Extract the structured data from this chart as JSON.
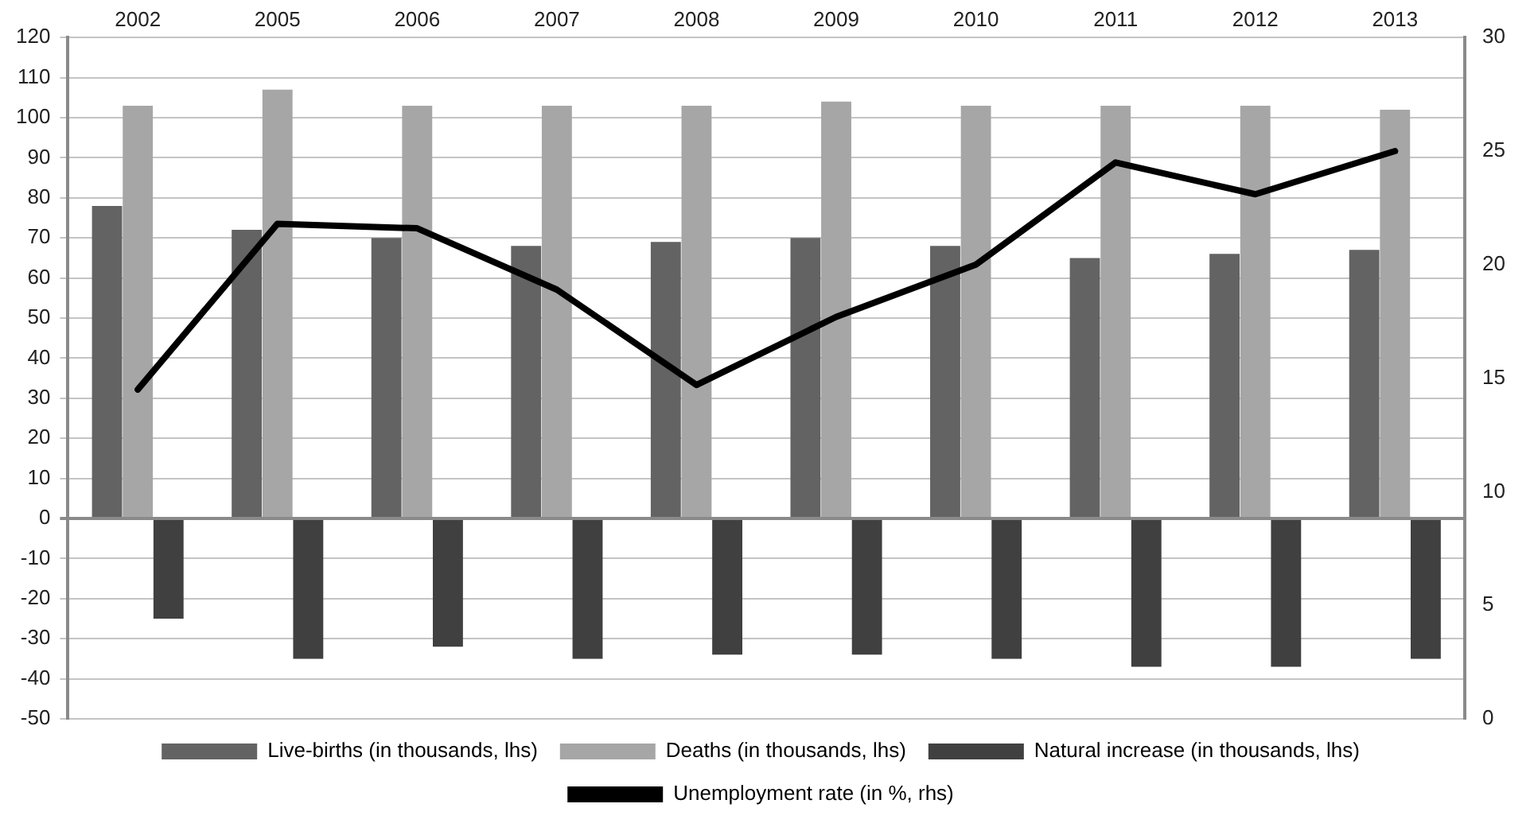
{
  "chart_data": {
    "type": "bar",
    "categories": [
      "2002",
      "2005",
      "2006",
      "2007",
      "2008",
      "2009",
      "2010",
      "2011",
      "2012",
      "2013"
    ],
    "series": [
      {
        "name": "Live-births (in thousands, lhs)",
        "color": "#636363",
        "values": [
          78,
          72,
          70,
          68,
          69,
          70,
          68,
          65,
          66,
          67
        ]
      },
      {
        "name": "Deaths (in thousands, lhs)",
        "color": "#a6a6a6",
        "values": [
          103,
          107,
          103,
          103,
          103,
          104,
          103,
          103,
          103,
          102
        ]
      },
      {
        "name": "Natural increase (in thousands, lhs)",
        "color": "#404040",
        "values": [
          -25,
          -35,
          -32,
          -35,
          -34,
          -34,
          -35,
          -37,
          -37,
          -35
        ]
      },
      {
        "name": "Unemployment rate (in %, rhs)",
        "type": "line",
        "axis": "y2",
        "color": "#000000",
        "values": [
          14.5,
          21.8,
          21.6,
          18.9,
          14.7,
          17.7,
          20.0,
          24.5,
          23.1,
          25.0
        ]
      }
    ],
    "ylim": [
      -50,
      120
    ],
    "yticks": [
      -50,
      -40,
      -30,
      -20,
      -10,
      0,
      10,
      20,
      30,
      40,
      50,
      60,
      70,
      80,
      90,
      100,
      110,
      120
    ],
    "y2lim": [
      0,
      30
    ],
    "y2ticks": [
      0,
      5,
      10,
      15,
      20,
      25,
      30
    ],
    "grid": "y",
    "legend": "bottom",
    "marker": "none"
  }
}
